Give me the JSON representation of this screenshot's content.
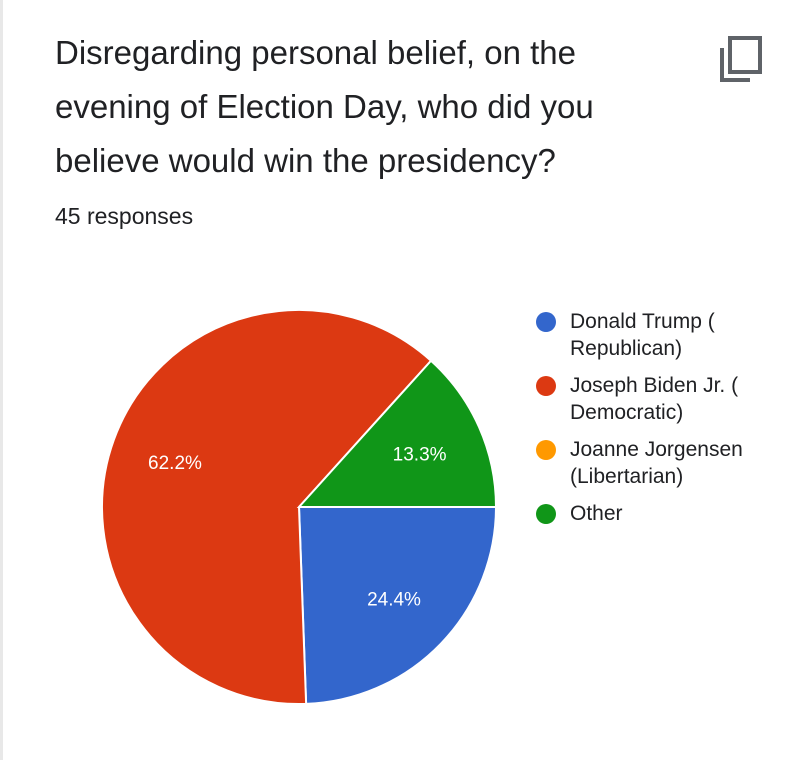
{
  "question": {
    "title": "Disregarding personal belief, on the evening of Election Day, who did you believe would win the presidency?",
    "responses": "45 responses"
  },
  "icons": {
    "copy": "copy-icon"
  },
  "chart_data": {
    "type": "pie",
    "title": "Disregarding personal belief, on the evening of Election Day, who did you believe would win the presidency?",
    "total_responses": 45,
    "slices": [
      {
        "name": "Donald Trump ( Republican)",
        "legend_label": "Donald Trump (\nRepublican)",
        "value": 24.4,
        "label": "24.4%",
        "color": "#3366cc"
      },
      {
        "name": "Joseph Biden Jr. ( Democratic)",
        "legend_label": "Joseph Biden Jr. (\nDemocratic)",
        "value": 62.2,
        "label": "62.2%",
        "color": "#dc3912"
      },
      {
        "name": "Joanne Jorgensen (Libertarian)",
        "legend_label": "Joanne Jorgensen\n(Libertarian)",
        "value": 0,
        "label": "",
        "color": "#ff9900"
      },
      {
        "name": "Other",
        "legend_label": "Other",
        "value": 13.3,
        "label": "13.3%",
        "color": "#109618"
      }
    ],
    "legend_position": "right"
  }
}
